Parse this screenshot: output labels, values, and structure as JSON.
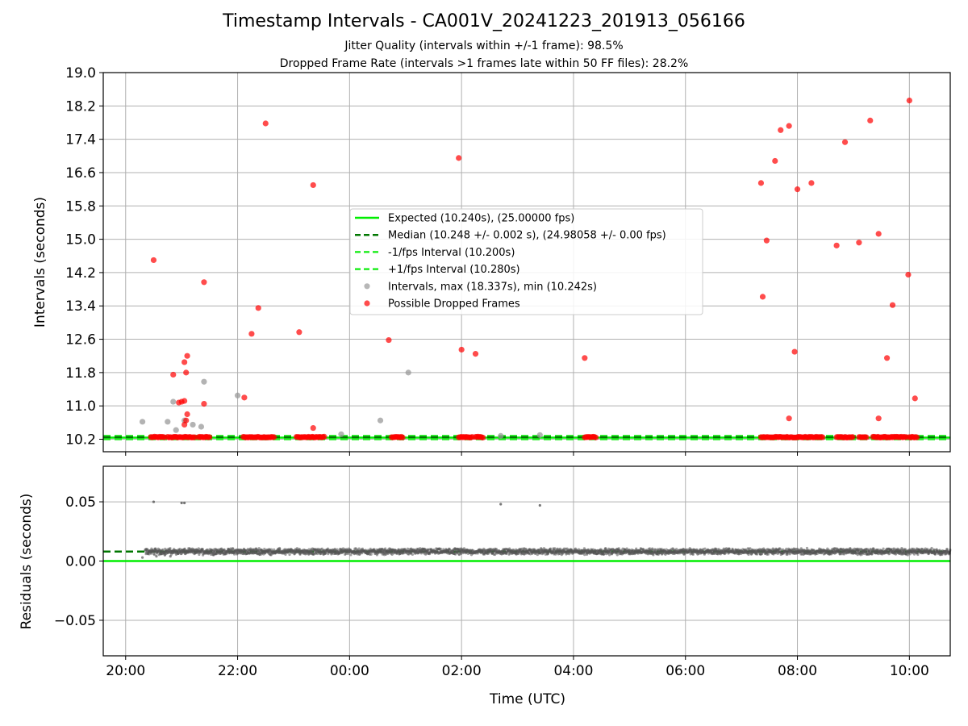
{
  "figure": {
    "title": "Timestamp Intervals - CA001V_20241223_201913_056166",
    "subtitle_jitter": "Jitter Quality (intervals within +/-1 frame): 98.5%",
    "subtitle_dropped": "Dropped Frame Rate (intervals >1 frames late within 50 FF files): 28.2%"
  },
  "colors": {
    "expected": "#00ee00",
    "median": "#007700",
    "fps_interval": "#22ee22",
    "intervals": "#999999",
    "dropped": "#ff0000",
    "residuals": "#555555",
    "grid": "#b0b0b0"
  },
  "chart_data": [
    {
      "type": "scatter",
      "panel": "intervals",
      "ylabel": "Intervals (seconds)",
      "ylim": [
        9.9,
        19.0
      ],
      "xlim_hours": [
        19.6,
        34.73
      ],
      "x_unit": "hours UTC (values > 24 are the next day)",
      "yticks": [
        "10.2",
        "11.0",
        "11.8",
        "12.6",
        "13.4",
        "14.2",
        "15.0",
        "15.8",
        "16.6",
        "17.4",
        "18.2",
        "19.0"
      ],
      "grid": true,
      "legend_placement": "center",
      "legend": [
        {
          "label": "Expected (10.240s), (25.00000 fps)",
          "style": "solid",
          "color": "#00ee00"
        },
        {
          "label": "Median (10.248 +/- 0.002 s), (24.98058 +/- 0.00 fps)",
          "style": "dashed",
          "color": "#007700"
        },
        {
          "label": "-1/fps Interval (10.200s)",
          "style": "dashed",
          "color": "#22ee22"
        },
        {
          "label": "+1/fps Interval (10.280s)",
          "style": "dashed",
          "color": "#22ee22"
        },
        {
          "label": "Intervals, max (18.337s), min (10.242s)",
          "style": "marker",
          "color": "#999999"
        },
        {
          "label": "Possible Dropped Frames",
          "style": "marker",
          "color": "#ff0000"
        }
      ],
      "series": [
        {
          "name": "Expected",
          "y": 10.24
        },
        {
          "name": "Median",
          "y": 10.248
        },
        {
          "name": "-1/fps Interval",
          "y": 10.2
        },
        {
          "name": "+1/fps Interval",
          "y": 10.28
        },
        {
          "name": "Intervals",
          "points": [
            [
              20.3,
              10.62
            ],
            [
              20.75,
              10.62
            ],
            [
              20.85,
              11.1
            ],
            [
              20.9,
              10.42
            ],
            [
              21.05,
              10.65
            ],
            [
              21.2,
              10.55
            ],
            [
              21.35,
              10.5
            ],
            [
              21.4,
              11.58
            ],
            [
              22.0,
              11.25
            ],
            [
              23.85,
              10.32
            ],
            [
              24.55,
              10.65
            ],
            [
              25.05,
              11.8
            ],
            [
              26.7,
              10.28
            ],
            [
              27.4,
              10.3
            ]
          ]
        },
        {
          "name": "Possible Dropped Frames",
          "points": [
            [
              20.5,
              14.5
            ],
            [
              20.85,
              11.75
            ],
            [
              20.95,
              11.08
            ],
            [
              21.0,
              11.1
            ],
            [
              21.05,
              11.12
            ],
            [
              21.05,
              12.05
            ],
            [
              21.08,
              11.8
            ],
            [
              21.1,
              12.2
            ],
            [
              21.08,
              10.65
            ],
            [
              21.1,
              10.8
            ],
            [
              21.05,
              10.55
            ],
            [
              21.4,
              13.97
            ],
            [
              21.4,
              11.05
            ],
            [
              22.12,
              11.2
            ],
            [
              22.25,
              12.73
            ],
            [
              22.37,
              13.35
            ],
            [
              22.5,
              17.78
            ],
            [
              23.1,
              12.77
            ],
            [
              23.35,
              10.47
            ],
            [
              23.35,
              16.3
            ],
            [
              24.7,
              12.58
            ],
            [
              25.95,
              16.95
            ],
            [
              26.0,
              12.35
            ],
            [
              26.25,
              12.25
            ],
            [
              28.2,
              12.15
            ],
            [
              31.35,
              16.35
            ],
            [
              31.38,
              13.62
            ],
            [
              31.45,
              14.97
            ],
            [
              31.6,
              16.88
            ],
            [
              31.7,
              17.62
            ],
            [
              31.85,
              17.72
            ],
            [
              31.85,
              10.7
            ],
            [
              31.95,
              12.3
            ],
            [
              32.0,
              16.2
            ],
            [
              32.25,
              16.35
            ],
            [
              32.7,
              14.85
            ],
            [
              32.85,
              17.33
            ],
            [
              33.1,
              14.92
            ],
            [
              33.3,
              17.85
            ],
            [
              33.45,
              15.13
            ],
            [
              33.45,
              10.7
            ],
            [
              33.6,
              12.15
            ],
            [
              33.7,
              13.42
            ],
            [
              33.98,
              14.15
            ],
            [
              34.0,
              18.33
            ],
            [
              34.1,
              11.18
            ]
          ],
          "dense_baseline_y": 10.25,
          "dense_baseline_ranges": [
            [
              20.45,
              20.7
            ],
            [
              20.75,
              21.25
            ],
            [
              21.3,
              21.5
            ],
            [
              22.1,
              22.65
            ],
            [
              23.05,
              23.35
            ],
            [
              23.35,
              23.55
            ],
            [
              24.75,
              24.95
            ],
            [
              25.95,
              26.2
            ],
            [
              26.25,
              26.4
            ],
            [
              28.2,
              28.4
            ],
            [
              31.35,
              32.45
            ],
            [
              32.7,
              33.0
            ],
            [
              33.1,
              33.25
            ],
            [
              33.35,
              33.95
            ],
            [
              34.0,
              34.15
            ]
          ]
        }
      ]
    },
    {
      "type": "scatter",
      "panel": "residuals",
      "ylabel": "Residuals (seconds)",
      "xlabel": "Time (UTC)",
      "ylim": [
        -0.08,
        0.08
      ],
      "xlim_hours": [
        19.6,
        34.73
      ],
      "yticks": [
        "0.05",
        "0.00",
        "−0.05"
      ],
      "xticks": [
        "20:00",
        "22:00",
        "00:00",
        "02:00",
        "04:00",
        "06:00",
        "08:00",
        "10:00"
      ],
      "grid": true,
      "series": [
        {
          "name": "Expected",
          "y": 0.0
        },
        {
          "name": "Median",
          "y": 0.008
        },
        {
          "name": "Residuals",
          "band_x": [
            20.35,
            34.73
          ],
          "band_center": 0.008,
          "band_half_width": 0.003,
          "outliers": [
            [
              20.5,
              0.05
            ],
            [
              21.0,
              0.049
            ],
            [
              21.05,
              0.049
            ],
            [
              26.7,
              0.048
            ],
            [
              27.4,
              0.047
            ]
          ]
        }
      ]
    }
  ]
}
